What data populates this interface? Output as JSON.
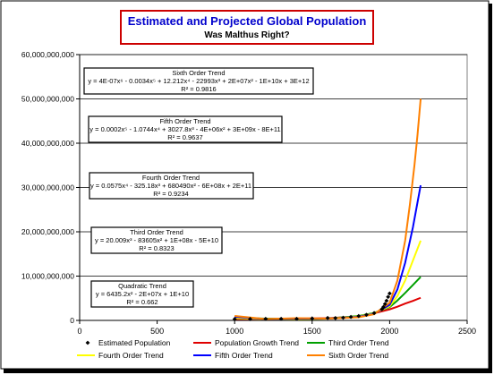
{
  "chart_data": {
    "type": "scatter",
    "title": "Estimated and Projected Global Population",
    "subtitle": "Was Malthus Right?",
    "xlabel": "",
    "ylabel": "",
    "xlim": [
      0,
      2500
    ],
    "ylim": [
      0,
      60000000000
    ],
    "x_ticks": [
      "0",
      "500",
      "1000",
      "1500",
      "2000",
      "2500"
    ],
    "y_ticks": [
      "0",
      "10,000,000,000",
      "20,000,000,000",
      "30,000,000,000",
      "40,000,000,000",
      "50,000,000,000",
      "60,000,000,000"
    ],
    "grid": "horizontal",
    "legend_position": "bottom",
    "estimated_points": {
      "x": [
        1000,
        1100,
        1200,
        1300,
        1400,
        1500,
        1600,
        1650,
        1700,
        1750,
        1800,
        1850,
        1900,
        1950,
        1960,
        1970,
        1980,
        1990,
        2000
      ],
      "y": [
        310000000,
        320000000,
        360000000,
        360000000,
        350000000,
        440000000,
        550000000,
        520000000,
        610000000,
        790000000,
        980000000,
        1260000000,
        1650000000,
        2520000000,
        3020000000,
        3700000000,
        4450000000,
        5300000000,
        6080000000
      ]
    },
    "series": [
      {
        "name": "Estimated Population",
        "color": "#000000",
        "marker": "diamond"
      },
      {
        "name": "Population Growth Trend",
        "color": "#e00000",
        "x": [
          1000,
          1200,
          1400,
          1600,
          1800,
          1900,
          2000,
          2050,
          2100,
          2150,
          2200
        ],
        "y": [
          300000000,
          350000000,
          400000000,
          500000000,
          900000000,
          1600000000,
          2500000000,
          3100000000,
          3800000000,
          4400000000,
          5100000000
        ]
      },
      {
        "name": "Third Order Trend",
        "color": "#00a000",
        "x": [
          1000,
          1200,
          1400,
          1600,
          1800,
          1900,
          2000,
          2050,
          2100,
          2150,
          2200
        ],
        "y": [
          600000000,
          400000000,
          300000000,
          400000000,
          1000000000,
          1700000000,
          3000000000,
          4500000000,
          6200000000,
          8000000000,
          9800000000
        ]
      },
      {
        "name": "Fourth Order Trend",
        "color": "#ffff00",
        "x": [
          1000,
          1200,
          1400,
          1600,
          1800,
          1900,
          2000,
          2050,
          2100,
          2150,
          2200
        ],
        "y": [
          500000000,
          300000000,
          300000000,
          400000000,
          900000000,
          1600000000,
          3200000000,
          5500000000,
          9000000000,
          13500000000,
          18000000000
        ]
      },
      {
        "name": "Fifth Order Trend",
        "color": "#0000ff",
        "x": [
          1000,
          1200,
          1400,
          1600,
          1800,
          1900,
          2000,
          2050,
          2100,
          2150,
          2200
        ],
        "y": [
          800000000,
          300000000,
          400000000,
          400000000,
          800000000,
          1500000000,
          3500000000,
          7000000000,
          13000000000,
          21000000000,
          30500000000
        ]
      },
      {
        "name": "Sixth Order Trend",
        "color": "#ff8000",
        "x": [
          1000,
          1200,
          1400,
          1600,
          1800,
          1900,
          2000,
          2050,
          2100,
          2130,
          2160,
          2180,
          2200
        ],
        "y": [
          1000000000,
          300000000,
          500000000,
          400000000,
          700000000,
          1400000000,
          4000000000,
          9000000000,
          18000000000,
          26000000000,
          35000000000,
          42000000000,
          50000000000
        ]
      }
    ],
    "annotations": [
      {
        "title": "Sixth Order Trend",
        "equation": "y = 4E-07x⁶ - 0.0034x⁵ + 12.212x⁴ - 22993x³ + 2E+07x² - 1E+10x + 3E+12",
        "r2": "R² = 0.9816"
      },
      {
        "title": "Fifth Order Trend",
        "equation": "y = 0.0002x⁵ - 1.0744x⁴ + 3027.8x³ - 4E+06x² + 3E+09x - 8E+11",
        "r2": "R² = 0.9637"
      },
      {
        "title": "Fourth Order Trend",
        "equation": "y = 0.0575x⁴ - 325.18x³ + 680490x² - 6E+08x + 2E+11",
        "r2": "R² = 0.9234"
      },
      {
        "title": "Third Order Trend",
        "equation": "y = 20.009x³ - 83605x² + 1E+08x - 5E+10",
        "r2": "R² = 0.8323"
      },
      {
        "title": "Quadratic Trend",
        "equation": "y = 6435.2x² - 2E+07x + 1E+10",
        "r2": "R² = 0.662"
      }
    ]
  }
}
